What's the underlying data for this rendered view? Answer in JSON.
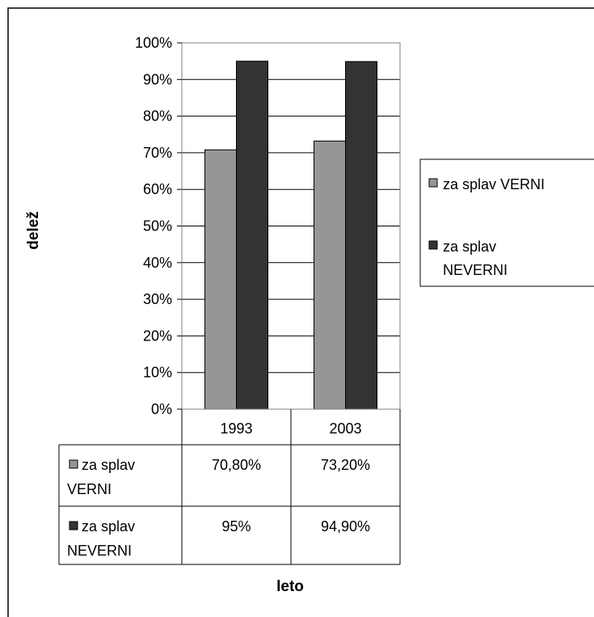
{
  "chart_data": {
    "type": "bar",
    "categories": [
      "1993",
      "2003"
    ],
    "series": [
      {
        "name": "za splav VERNI",
        "values": [
          70.8,
          73.2
        ],
        "labels": [
          "70,80%",
          "73,20%"
        ],
        "color": "#969696"
      },
      {
        "name": "za splav NEVERNI",
        "values": [
          95,
          94.9
        ],
        "labels": [
          "95%",
          "94,90%"
        ],
        "color": "#333333"
      }
    ],
    "xlabel": "leto",
    "ylabel": "delež",
    "ylim": [
      0,
      100
    ],
    "yticks": [
      "0%",
      "10%",
      "20%",
      "30%",
      "40%",
      "50%",
      "60%",
      "70%",
      "80%",
      "90%",
      "100%"
    ],
    "grid": true,
    "legend_position": "right",
    "data_table": true
  }
}
